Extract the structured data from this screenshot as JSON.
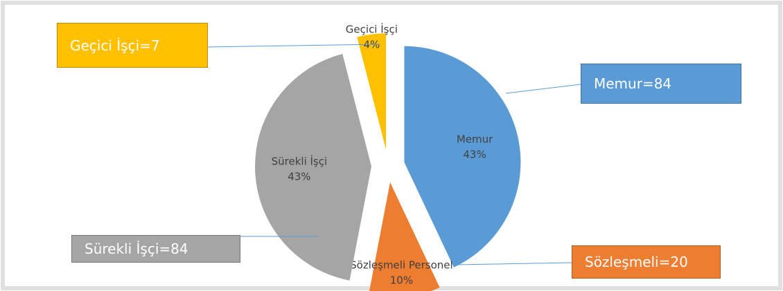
{
  "chart_data": {
    "type": "pie",
    "categories": [
      "Memur",
      "Sözleşmeli Personel",
      "Sürekli İşçi",
      "Geçici İşçi"
    ],
    "values": [
      43,
      10,
      43,
      4
    ],
    "value_labels": [
      "43%",
      "10%",
      "43%",
      "4%"
    ],
    "colors": [
      "#5b9bd5",
      "#ed7d31",
      "#a5a5a5",
      "#ffc000"
    ],
    "annotations": [
      "Memur=84",
      "Sözleşmeli=20",
      "Sürekli İşçi=84",
      "Geçici İşçi=7"
    ]
  }
}
